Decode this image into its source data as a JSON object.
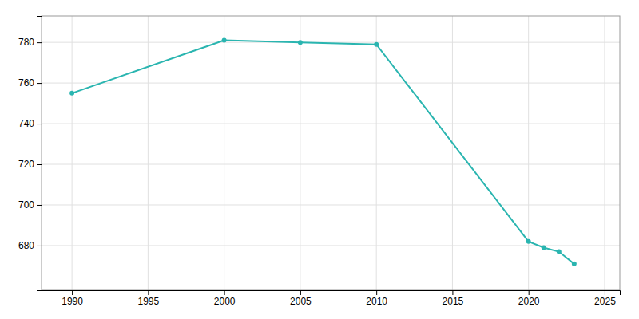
{
  "chart_data": {
    "type": "line",
    "x": [
      1990,
      2000,
      2005,
      2010,
      2020,
      2021,
      2022,
      2023
    ],
    "values": [
      755,
      781,
      780,
      779,
      682,
      679,
      677,
      671
    ],
    "color": "#2ab5b0",
    "marker": "circle",
    "xlim": [
      1988,
      2026
    ],
    "ylim": [
      658,
      793
    ],
    "xticks": [
      1990,
      1995,
      2000,
      2005,
      2010,
      2015,
      2020,
      2025
    ],
    "yticks": [
      680,
      700,
      720,
      740,
      760,
      780
    ],
    "grid": true
  }
}
